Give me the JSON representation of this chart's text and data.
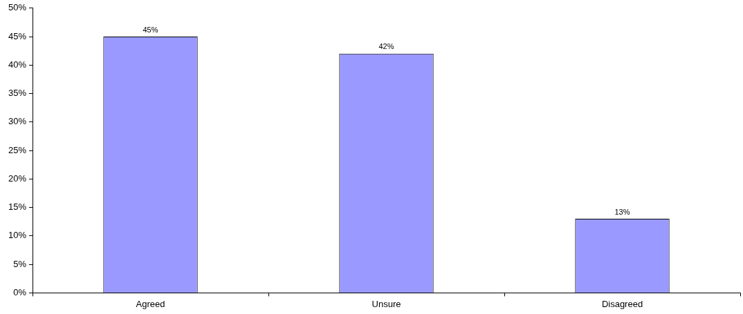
{
  "chart_data": {
    "type": "bar",
    "categories": [
      "Agreed",
      "Unsure",
      "Disagreed"
    ],
    "series": [
      {
        "color": "#9999ff",
        "values": [
          45,
          42,
          13
        ],
        "value_labels": [
          "45%",
          "42%",
          "13%"
        ]
      }
    ],
    "ylim": [
      0,
      50
    ],
    "yticks": [
      {
        "value": 0,
        "label": "0%"
      },
      {
        "value": 5,
        "label": "5%"
      },
      {
        "value": 10,
        "label": "10%"
      },
      {
        "value": 15,
        "label": "15%"
      },
      {
        "value": 20,
        "label": "20%"
      },
      {
        "value": 25,
        "label": "25%"
      },
      {
        "value": 30,
        "label": "30%"
      },
      {
        "value": 35,
        "label": "35%"
      },
      {
        "value": 40,
        "label": "40%"
      },
      {
        "value": 45,
        "label": "45%"
      },
      {
        "value": 50,
        "label": "50%"
      }
    ],
    "grid": false,
    "legend": false
  }
}
